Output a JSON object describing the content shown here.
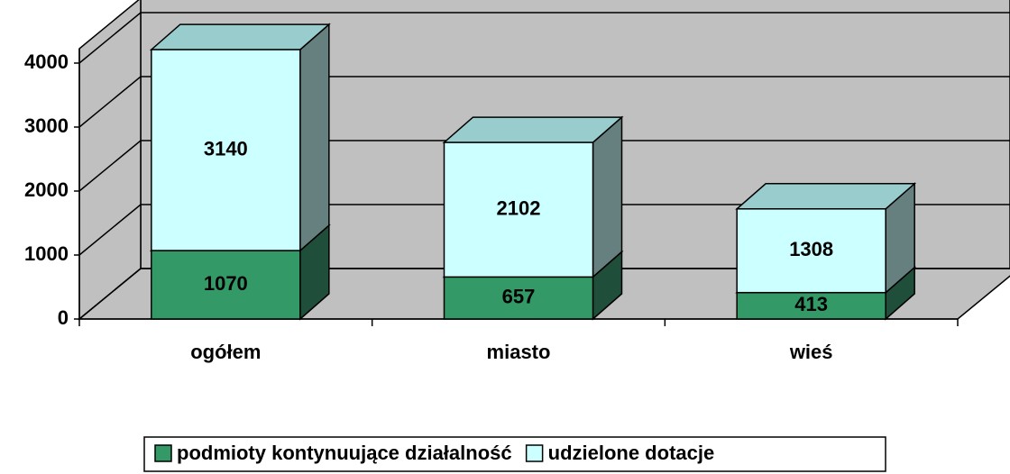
{
  "chart_data": {
    "type": "bar",
    "stacked": true,
    "categories": [
      "ogółem",
      "miasto",
      "wieś"
    ],
    "series": [
      {
        "name": "podmioty kontynuujące działalność",
        "color": "#339966",
        "values": [
          1070,
          657,
          413
        ]
      },
      {
        "name": "udzielone dotacje",
        "color": "#ccffff",
        "values": [
          3140,
          2102,
          1308
        ]
      }
    ],
    "ylim": [
      0,
      4000
    ],
    "yticks": [
      0,
      1000,
      2000,
      3000,
      4000
    ],
    "grid": true,
    "legend": "bottom"
  }
}
